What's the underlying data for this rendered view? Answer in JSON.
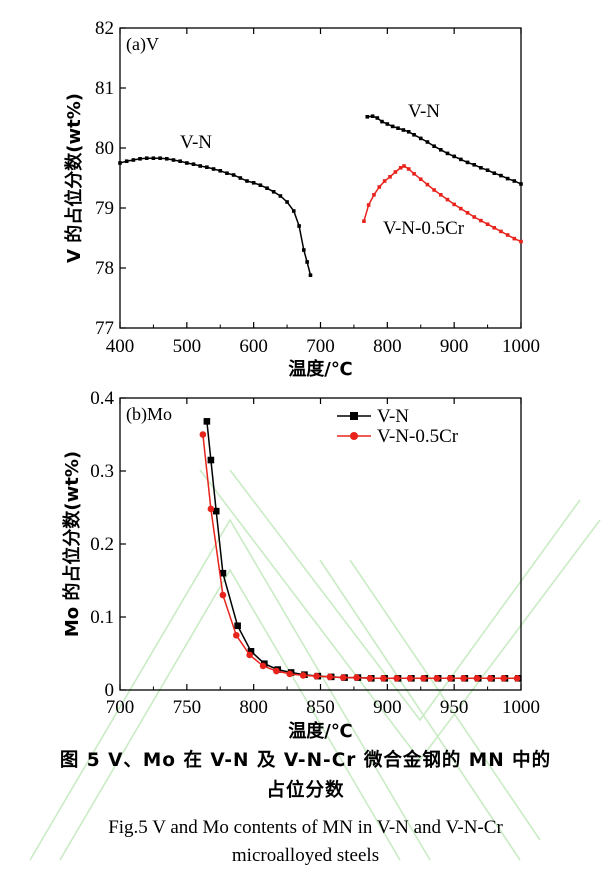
{
  "chart_data": [
    {
      "type": "line",
      "panel_label": "(a)V",
      "xlabel": "温度/℃",
      "ylabel": "V 的占位分数(wt%)",
      "xlim": [
        400,
        1000
      ],
      "ylim": [
        77,
        82
      ],
      "xticks": [
        400,
        500,
        600,
        700,
        800,
        900,
        1000
      ],
      "yticks": [
        77,
        78,
        79,
        80,
        81,
        82
      ],
      "annotations": [
        "V-N",
        "V-N",
        "V-N-0.5Cr"
      ],
      "series": [
        {
          "name": "V-N",
          "color": "#000000",
          "x": [
            400,
            410,
            420,
            430,
            440,
            450,
            460,
            470,
            480,
            490,
            500,
            510,
            520,
            530,
            540,
            550,
            560,
            570,
            580,
            590,
            600,
            610,
            620,
            630,
            640,
            650,
            660,
            668,
            675,
            680,
            685
          ],
          "y": [
            79.75,
            79.78,
            79.8,
            79.82,
            79.83,
            79.83,
            79.83,
            79.82,
            79.8,
            79.78,
            79.75,
            79.73,
            79.7,
            79.68,
            79.65,
            79.62,
            79.58,
            79.55,
            79.5,
            79.45,
            79.42,
            79.38,
            79.33,
            79.27,
            79.2,
            79.1,
            78.95,
            78.7,
            78.3,
            78.1,
            77.88
          ]
        },
        {
          "name": "V-N",
          "color": "#000000",
          "x": [
            770,
            778,
            785,
            792,
            800,
            808,
            816,
            824,
            832,
            840,
            850,
            860,
            870,
            880,
            890,
            900,
            910,
            920,
            930,
            940,
            950,
            960,
            970,
            980,
            990,
            1000
          ],
          "y": [
            80.52,
            80.53,
            80.5,
            80.44,
            80.4,
            80.36,
            80.33,
            80.3,
            80.27,
            80.22,
            80.16,
            80.1,
            80.03,
            79.97,
            79.91,
            79.86,
            79.81,
            79.76,
            79.72,
            79.67,
            79.63,
            79.58,
            79.54,
            79.49,
            79.45,
            79.4
          ]
        },
        {
          "name": "V-N-0.5Cr",
          "color": "#e8231c",
          "x": [
            765,
            772,
            780,
            788,
            796,
            804,
            812,
            820,
            825,
            832,
            840,
            850,
            860,
            870,
            880,
            890,
            900,
            910,
            920,
            930,
            940,
            950,
            960,
            970,
            980,
            990,
            1000
          ],
          "y": [
            78.78,
            79.05,
            79.22,
            79.35,
            79.45,
            79.52,
            79.6,
            79.67,
            79.7,
            79.65,
            79.57,
            79.48,
            79.39,
            79.3,
            79.22,
            79.14,
            79.06,
            78.99,
            78.92,
            78.85,
            78.79,
            78.73,
            78.67,
            78.61,
            78.55,
            78.49,
            78.44
          ]
        }
      ]
    },
    {
      "type": "line",
      "panel_label": "(b)Mo",
      "xlabel": "温度/℃",
      "ylabel": "Mo 的占位分数(wt%)",
      "xlim": [
        700,
        1000
      ],
      "ylim": [
        0,
        0.4
      ],
      "xticks": [
        700,
        750,
        800,
        850,
        900,
        950,
        1000
      ],
      "yticks": [
        0,
        0.1,
        0.2,
        0.3,
        0.4
      ],
      "ytick_labels": [
        "0",
        "0.1",
        "0.2",
        "0.3",
        "0.4"
      ],
      "legend": "top-right",
      "series": [
        {
          "name": "V-N",
          "color": "#000000",
          "marker": "square",
          "x": [
            765,
            768,
            772,
            777,
            788,
            798,
            808,
            818,
            828,
            838,
            848,
            858,
            868,
            878,
            888,
            898,
            908,
            918,
            928,
            938,
            948,
            958,
            968,
            978,
            988,
            998
          ],
          "y": [
            0.368,
            0.315,
            0.245,
            0.16,
            0.088,
            0.053,
            0.036,
            0.028,
            0.024,
            0.021,
            0.019,
            0.018,
            0.017,
            0.017,
            0.016,
            0.016,
            0.016,
            0.016,
            0.016,
            0.016,
            0.016,
            0.016,
            0.016,
            0.016,
            0.016,
            0.016
          ]
        },
        {
          "name": "V-N-0.5Cr",
          "color": "#e8231c",
          "marker": "circle",
          "x": [
            762,
            768,
            777,
            787,
            797,
            807,
            817,
            827,
            837,
            847,
            857,
            867,
            877,
            887,
            897,
            907,
            917,
            927,
            937,
            947,
            957,
            967,
            977,
            987,
            997
          ],
          "y": [
            0.35,
            0.248,
            0.13,
            0.075,
            0.048,
            0.033,
            0.026,
            0.022,
            0.02,
            0.019,
            0.018,
            0.017,
            0.017,
            0.016,
            0.016,
            0.016,
            0.016,
            0.016,
            0.016,
            0.016,
            0.016,
            0.016,
            0.016,
            0.016,
            0.016
          ]
        }
      ]
    }
  ],
  "caption": {
    "zh_line1": "图 5  V、Mo 在 V-N 及 V-N-Cr 微合金钢的 MN 中的",
    "zh_line2": "占位分数",
    "en_line1": "Fig.5  V and Mo contents of MN in V-N and V-N-Cr",
    "en_line2": "microalloyed steels"
  }
}
